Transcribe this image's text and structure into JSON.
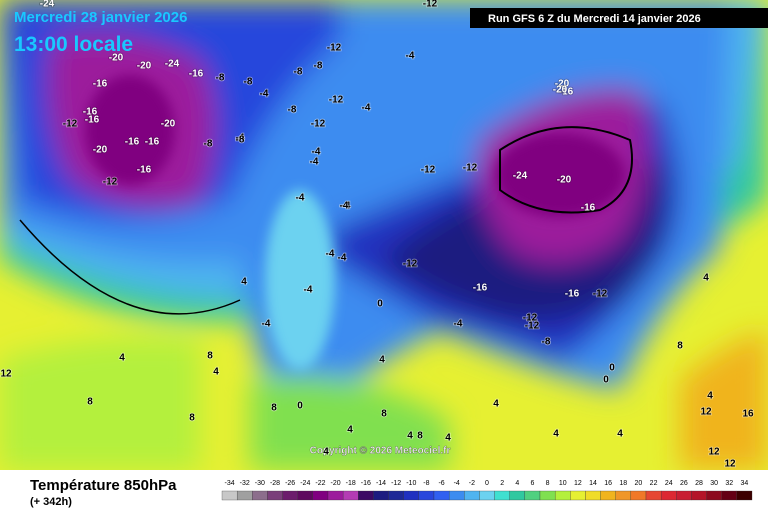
{
  "header": {
    "date": "Mercredi 28 janvier 2026",
    "time": "13:00 locale",
    "run": "Run GFS 6 Z du Mercredi 14 janvier 2026"
  },
  "copyright": "Copyright © 2026 Meteociel.fr",
  "footer": {
    "title": "Température 850hPa",
    "hour": "(+ 342h)"
  },
  "legend": {
    "ticks": [
      -34,
      -32,
      -30,
      -28,
      -26,
      -24,
      -22,
      -20,
      -18,
      -16,
      -14,
      -12,
      -10,
      -8,
      -6,
      -4,
      -2,
      0,
      2,
      4,
      6,
      8,
      10,
      12,
      14,
      16,
      18,
      20,
      22,
      24,
      26,
      28,
      30,
      32,
      34
    ],
    "colors": [
      "#c8c8c8",
      "#a0a0a0",
      "#8c6e8c",
      "#7a3f7a",
      "#6c1c6c",
      "#5e0a5e",
      "#800080",
      "#9c1c9c",
      "#b43cb4",
      "#3c0a64",
      "#1c1c80",
      "#1e2896",
      "#2030c0",
      "#2846dc",
      "#3060f0",
      "#3c8cf0",
      "#50b4f0",
      "#6cd2f0",
      "#40e0d0",
      "#30c8a0",
      "#50d080",
      "#80e050",
      "#b4f03c",
      "#e6f032",
      "#f0dc28",
      "#f0b41e",
      "#f09628",
      "#f07828",
      "#e64632",
      "#dc2832",
      "#c81e32",
      "#b41428",
      "#8c0a1e",
      "#640014",
      "#3c0000"
    ]
  },
  "map": {
    "labels": [
      -24,
      -20,
      -16,
      -16,
      -24,
      -20,
      -16,
      -12,
      -16,
      -20,
      -16,
      -16,
      -20,
      -16,
      -12,
      -8,
      -8,
      -4,
      -4,
      -12,
      -8,
      -12,
      -12,
      -8,
      -4,
      -4,
      -4,
      -4,
      -8,
      -8,
      -8,
      -4,
      -12,
      -12,
      -20,
      -16,
      -24,
      -20,
      -16,
      -16,
      -16,
      -12,
      -12,
      -12,
      -12,
      -8,
      -4,
      -4,
      -4,
      -4,
      -4,
      0,
      0,
      0,
      4,
      4,
      4,
      4,
      8,
      8,
      8,
      8,
      8,
      12,
      12,
      12,
      16,
      4,
      4,
      4,
      4,
      4,
      8,
      4,
      4,
      4,
      0,
      4,
      8,
      12,
      -4,
      -4,
      -20,
      -12
    ]
  }
}
